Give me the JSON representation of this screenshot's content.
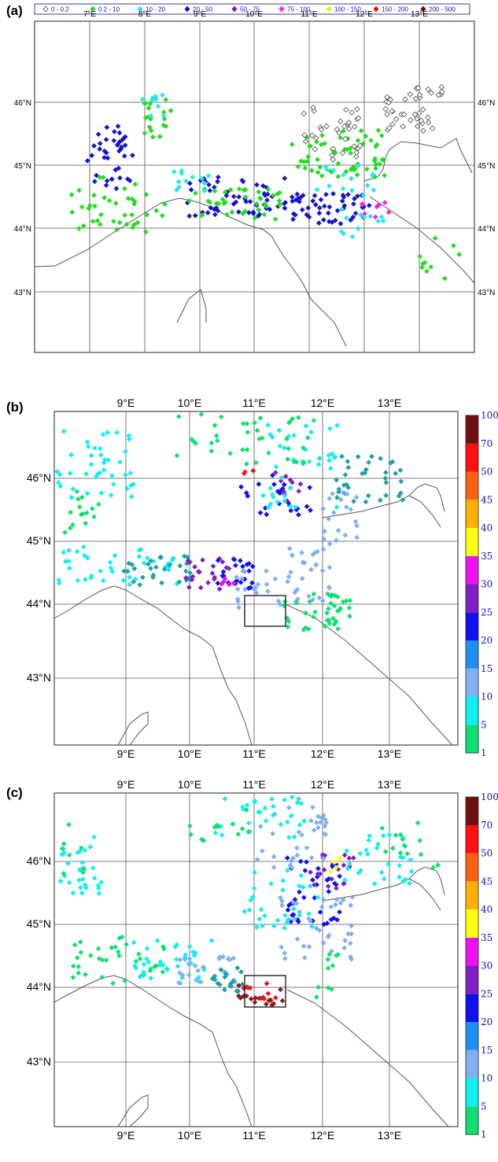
{
  "panels": [
    {
      "label": "(a)",
      "lon_ticks": [
        "7°E",
        "8°E",
        "9°E",
        "10°E",
        "11°E",
        "12°E",
        "13°E"
      ],
      "lat_ticks": [
        "46°N",
        "45°N",
        "44°N",
        "43°N"
      ],
      "legend": [
        {
          "text": "0 - 0.2",
          "color": "#ffffff",
          "hollow": true
        },
        {
          "text": "0.2 - 10",
          "color": "#22dd22"
        },
        {
          "text": "10 - 20",
          "color": "#22e8f0"
        },
        {
          "text": "20 - 50",
          "color": "#1515c8"
        },
        {
          "text": "50 - 75",
          "color": "#8020b0"
        },
        {
          "text": "75 - 100",
          "color": "#ff20e0"
        },
        {
          "text": "100 - 150",
          "color": "#ffea00"
        },
        {
          "text": "150 - 200",
          "color": "#e01010"
        },
        {
          "text": "200 - 500",
          "color": "#5a1010"
        }
      ]
    },
    {
      "label": "(b)",
      "lon_ticks": [
        "9°E",
        "10°E",
        "11°E",
        "12°E",
        "13°E"
      ],
      "lat_ticks": [
        "46°N",
        "45°N",
        "44°N",
        "43°N"
      ],
      "colorbar": [
        {
          "text": "1",
          "color": "#10e070"
        },
        {
          "text": "5",
          "color": "#10f0f0"
        },
        {
          "text": "10",
          "color": "#80b0f0"
        },
        {
          "text": "15",
          "color": "#2090f0"
        },
        {
          "text": "20",
          "color": "#1010f0"
        },
        {
          "text": "25",
          "color": "#8020c0"
        },
        {
          "text": "30",
          "color": "#f010f0"
        },
        {
          "text": "35",
          "color": "#ffff10"
        },
        {
          "text": "40",
          "color": "#ffb000"
        },
        {
          "text": "45",
          "color": "#ff6010"
        },
        {
          "text": "50",
          "color": "#ff1010"
        },
        {
          "text": "70",
          "color": "#b01010"
        },
        {
          "text": "100",
          "color": ""
        }
      ]
    },
    {
      "label": "(c)",
      "lon_ticks": [
        "9°E",
        "10°E",
        "11°E",
        "12°E",
        "13°E"
      ],
      "lat_ticks": [
        "46°N",
        "45°N",
        "44°N",
        "43°N"
      ],
      "colorbar": [
        {
          "text": "1",
          "color": "#10e070"
        },
        {
          "text": "5",
          "color": "#10f0f0"
        },
        {
          "text": "10",
          "color": "#80b0f0"
        },
        {
          "text": "15",
          "color": "#2090f0"
        },
        {
          "text": "20",
          "color": "#1010f0"
        },
        {
          "text": "25",
          "color": "#8020c0"
        },
        {
          "text": "30",
          "color": "#f010f0"
        },
        {
          "text": "35",
          "color": "#ffff10"
        },
        {
          "text": "40",
          "color": "#ffb000"
        },
        {
          "text": "45",
          "color": "#ff6010"
        },
        {
          "text": "50",
          "color": "#ff1010"
        },
        {
          "text": "70",
          "color": "#b01010"
        },
        {
          "text": "100",
          "color": ""
        }
      ]
    }
  ],
  "map_style": {
    "grid_color": "#555555",
    "coast_color": "#555555"
  }
}
